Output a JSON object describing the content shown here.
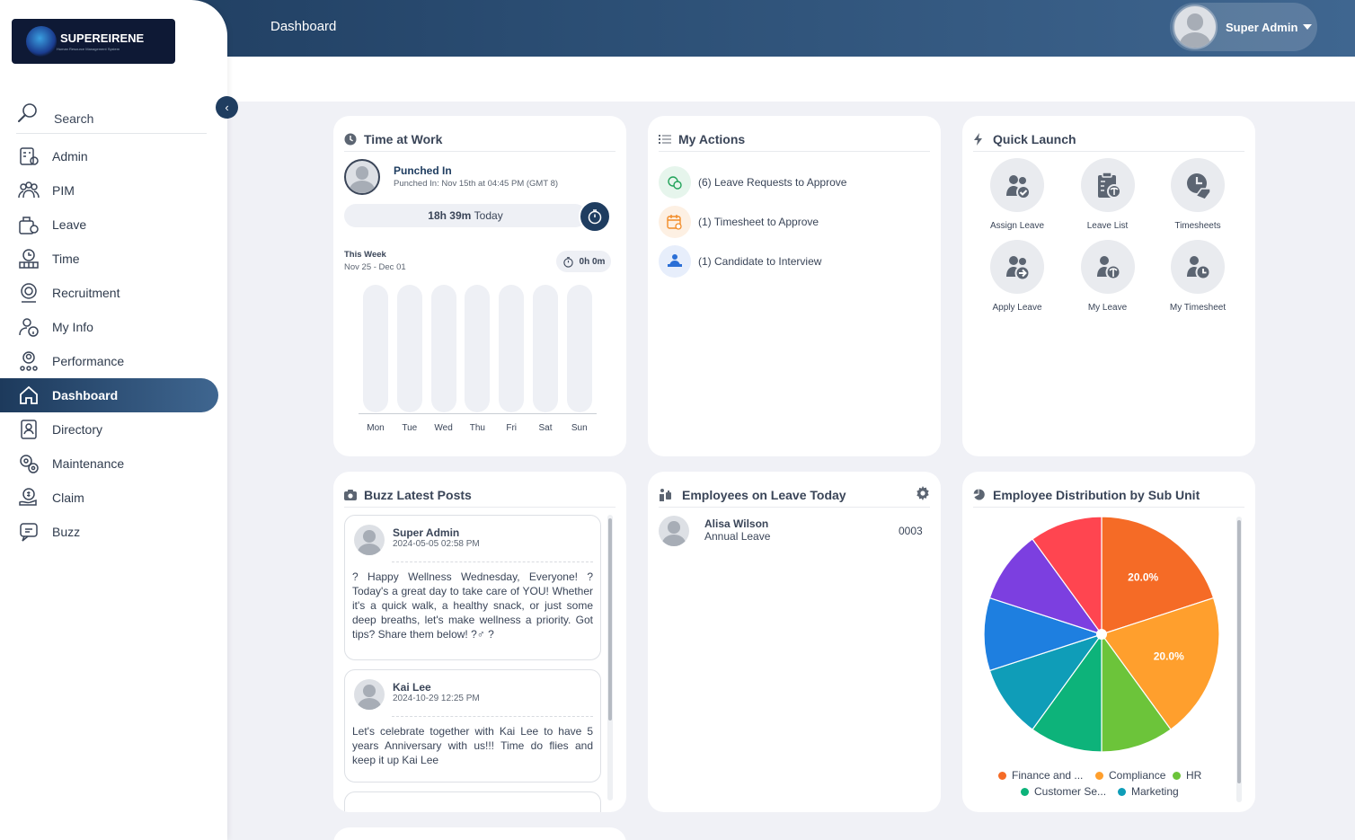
{
  "header": {
    "page_title": "Dashboard",
    "user_name": "Super Admin"
  },
  "brand": {
    "name": "SUPEREIRENE",
    "tagline": "Human Resource Management System"
  },
  "sidebar": {
    "search_label": "Search",
    "items": [
      {
        "label": "Admin",
        "icon": "admin-icon"
      },
      {
        "label": "PIM",
        "icon": "pim-icon"
      },
      {
        "label": "Leave",
        "icon": "leave-icon"
      },
      {
        "label": "Time",
        "icon": "time-icon"
      },
      {
        "label": "Recruitment",
        "icon": "recruitment-icon"
      },
      {
        "label": "My Info",
        "icon": "my-info-icon"
      },
      {
        "label": "Performance",
        "icon": "performance-icon"
      },
      {
        "label": "Dashboard",
        "icon": "home-icon",
        "active": true
      },
      {
        "label": "Directory",
        "icon": "directory-icon"
      },
      {
        "label": "Maintenance",
        "icon": "maintenance-icon"
      },
      {
        "label": "Claim",
        "icon": "claim-icon"
      },
      {
        "label": "Buzz",
        "icon": "buzz-icon"
      }
    ]
  },
  "time_at_work": {
    "title": "Time at Work",
    "status": "Punched In",
    "punched_in": "Punched In: Nov 15th at 04:45 PM (GMT 8)",
    "today_hours": "18h 39m",
    "today_label": "Today",
    "week_label": "This Week",
    "week_range": "Nov 25 - Dec 01",
    "week_total": "0h 0m",
    "days": [
      "Mon",
      "Tue",
      "Wed",
      "Thu",
      "Fri",
      "Sat",
      "Sun"
    ]
  },
  "my_actions": {
    "title": "My Actions",
    "items": [
      {
        "label": "(6) Leave Requests to Approve",
        "icon": "leave-approve-icon",
        "color": "#22a35a"
      },
      {
        "label": "(1) Timesheet to Approve",
        "icon": "timesheet-calendar-icon",
        "color": "#f28c28"
      },
      {
        "label": "(1) Candidate to Interview",
        "icon": "candidate-interview-icon",
        "color": "#2b6fd6"
      }
    ]
  },
  "quick_launch": {
    "title": "Quick Launch",
    "items": [
      {
        "label": "Assign Leave",
        "icon": "assign-leave-icon"
      },
      {
        "label": "Leave List",
        "icon": "leave-list-icon"
      },
      {
        "label": "Timesheets",
        "icon": "timesheets-icon"
      },
      {
        "label": "Apply Leave",
        "icon": "apply-leave-icon"
      },
      {
        "label": "My Leave",
        "icon": "my-leave-icon"
      },
      {
        "label": "My Timesheet",
        "icon": "my-timesheet-icon"
      }
    ]
  },
  "buzz": {
    "title": "Buzz Latest Posts",
    "posts": [
      {
        "author": "Super Admin",
        "date": "2024-05-05 02:58 PM",
        "text": "? Happy Wellness Wednesday, Everyone! ? Today's a great day to take care of YOU! Whether it's a quick walk, a healthy snack, or just some deep breaths, let's make wellness a priority. Got tips? Share them below! ?♂ ?"
      },
      {
        "author": "Kai Lee",
        "date": "2024-10-29 12:25 PM",
        "text": "Let's celebrate together with Kai Lee to have 5 years Anniversary with us!!! Time do flies and keep it up Kai Lee"
      }
    ]
  },
  "leave_today": {
    "title": "Employees on Leave Today",
    "employees": [
      {
        "name": "Alisa Wilson",
        "type": "Annual Leave",
        "id": "0003"
      }
    ]
  },
  "distribution": {
    "title": "Employee Distribution by Sub Unit",
    "legend": [
      {
        "label": "Finance and ...",
        "color": "#f56b26"
      },
      {
        "label": "Compliance",
        "color": "#ff9f2d"
      },
      {
        "label": "HR",
        "color": "#6cc43a"
      },
      {
        "label": "Customer Se...",
        "color": "#0db37a"
      },
      {
        "label": "Marketing",
        "color": "#0f9db8"
      }
    ]
  },
  "chart_data": {
    "type": "pie",
    "slices": [
      {
        "label": "Finance and ...",
        "value": 20.0,
        "color": "#f56b26",
        "show_label": "20.0%"
      },
      {
        "label": "Compliance",
        "value": 20.0,
        "color": "#ff9f2d",
        "show_label": "20.0%"
      },
      {
        "label": "HR",
        "value": 10.0,
        "color": "#6cc43a"
      },
      {
        "label": "Customer Se...",
        "value": 10.0,
        "color": "#0db37a"
      },
      {
        "label": "Marketing",
        "value": 10.0,
        "color": "#0f9db8"
      },
      {
        "label": "",
        "value": 10.0,
        "color": "#1e7fe0"
      },
      {
        "label": "",
        "value": 10.0,
        "color": "#7c3fe0"
      },
      {
        "label": "",
        "value": 10.0,
        "color": "#ff4550"
      }
    ]
  }
}
